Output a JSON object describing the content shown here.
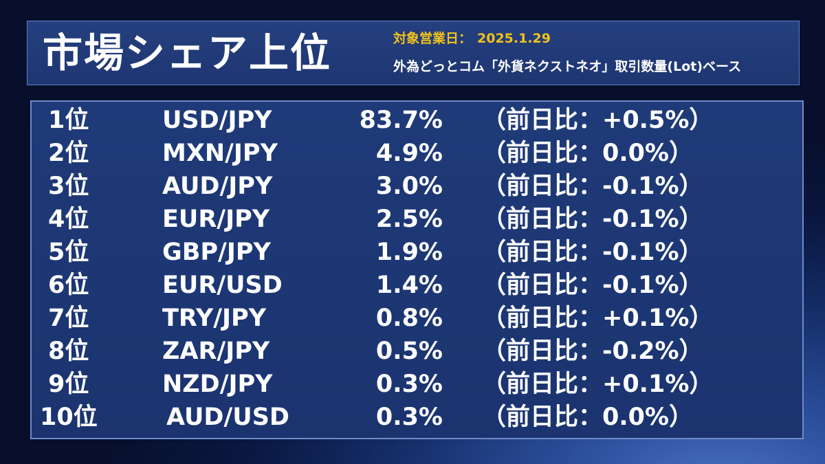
{
  "header": {
    "title": "市場シェア上位",
    "date_label": "対象営業日：",
    "date_value": "2025.1.29",
    "basis": "外為どっとコム「外貨ネクストネオ」取引数量(Lot)ベース"
  },
  "rankings": [
    {
      "rank": "1位",
      "pair": "USD/JPY",
      "share": "83.7%",
      "change": "（前日比：+0.5%）"
    },
    {
      "rank": "2位",
      "pair": "MXN/JPY",
      "share": "4.9%",
      "change": "（前日比：0.0%）"
    },
    {
      "rank": "3位",
      "pair": "AUD/JPY",
      "share": "3.0%",
      "change": "（前日比：-0.1%）"
    },
    {
      "rank": "4位",
      "pair": "EUR/JPY",
      "share": "2.5%",
      "change": "（前日比：-0.1%）"
    },
    {
      "rank": "5位",
      "pair": "GBP/JPY",
      "share": "1.9%",
      "change": "（前日比：-0.1%）"
    },
    {
      "rank": "6位",
      "pair": "EUR/USD",
      "share": "1.4%",
      "change": "（前日比：-0.1%）"
    },
    {
      "rank": "7位",
      "pair": "TRY/JPY",
      "share": "0.8%",
      "change": "（前日比：+0.1%）"
    },
    {
      "rank": "8位",
      "pair": "ZAR/JPY",
      "share": "0.5%",
      "change": "（前日比：-0.2%）"
    },
    {
      "rank": "9位",
      "pair": "NZD/JPY",
      "share": "0.3%",
      "change": "（前日比：+0.1%）"
    },
    {
      "rank": "10位",
      "pair": "AUD/USD",
      "share": "0.3%",
      "change": "（前日比：0.0%）"
    }
  ],
  "colors": {
    "accent": "#f2c21a",
    "panel": "#1f3a78",
    "border": "#6f8cc8"
  }
}
